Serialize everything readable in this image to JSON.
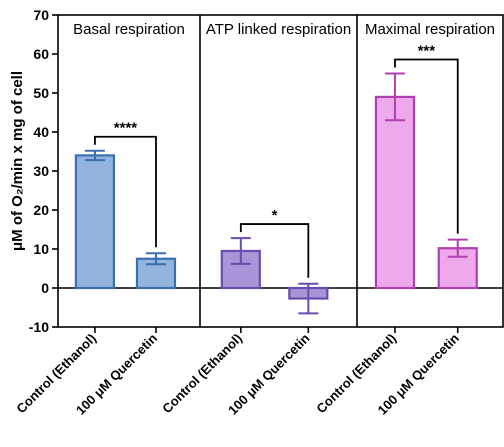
{
  "chart_data": {
    "type": "bar",
    "ylabel": "μM of O₂/min x mg of cell",
    "ylim": [
      -10,
      70
    ],
    "yticks": [
      -10,
      0,
      10,
      20,
      30,
      40,
      50,
      60,
      70
    ],
    "categories": [
      "Control (Ethanol)",
      "100 μM Quercetin"
    ],
    "panels": [
      {
        "title": "Basal respiration",
        "values": [
          34.0,
          7.5
        ],
        "errors": [
          1.2,
          1.4
        ],
        "fill": "#93b4dd",
        "stroke": "#3a6fb0",
        "significance": "****"
      },
      {
        "title": "ATP linked respiration",
        "values": [
          9.5,
          -2.7
        ],
        "errors": [
          3.3,
          3.8
        ],
        "fill": "#a894d6",
        "stroke": "#6a4cad",
        "significance": "*"
      },
      {
        "title": "Maximal respiration",
        "values": [
          49.0,
          10.2
        ],
        "errors": [
          6.0,
          2.2
        ],
        "fill": "#eea8ec",
        "stroke": "#b040b0",
        "significance": "***"
      }
    ]
  }
}
